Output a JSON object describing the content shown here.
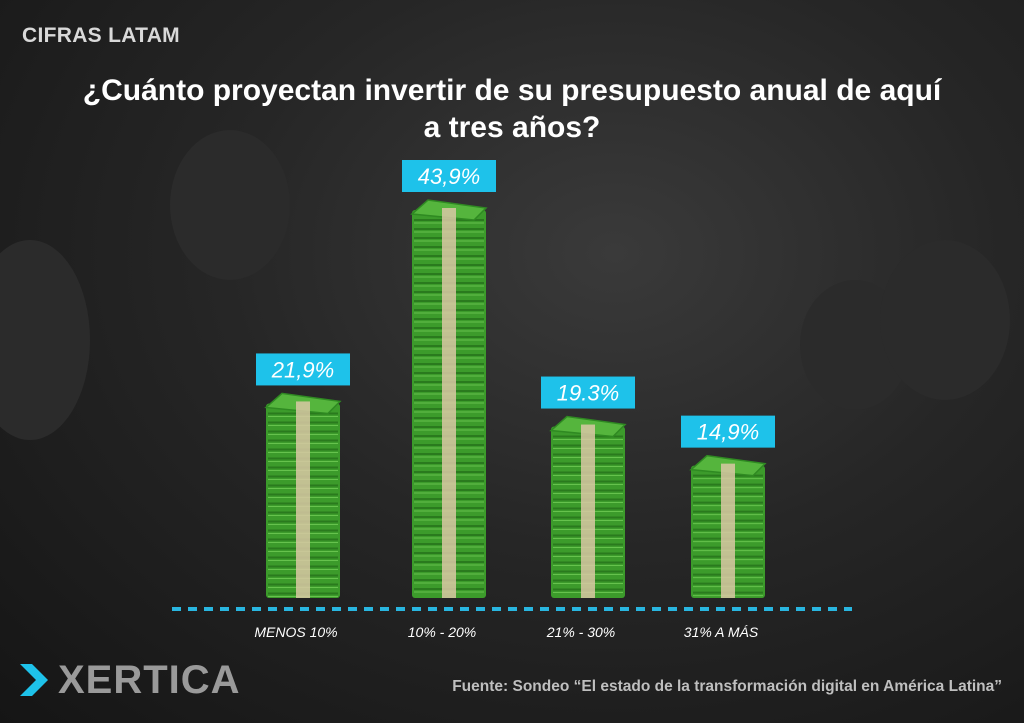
{
  "header": {
    "label": "CIFRAS LATAM"
  },
  "chart_data": {
    "type": "bar",
    "title": "¿Cuánto proyectan invertir de su presupuesto anual de aquí a tres años?",
    "categories": [
      "MENOS 10%",
      "10% - 20%",
      "21% - 30%",
      "31% A MÁS"
    ],
    "values": [
      21.9,
      43.9,
      19.3,
      14.9
    ],
    "value_labels": [
      "21,9%",
      "43,9%",
      "19.3%",
      "14,9%"
    ],
    "ylim": [
      0,
      50
    ],
    "grid": false,
    "legend": "none",
    "colors": {
      "bar": "#3c9b2b",
      "label_box": "#1ec2ea",
      "baseline": "#29b6e0",
      "band": "#d9c8a4"
    }
  },
  "footer": {
    "brand": "XERTICA",
    "source": "Fuente: Sondeo “El estado de la transformación digital en América Latina”"
  },
  "icons": {
    "brand_mark": "chevron-arrow-icon"
  }
}
